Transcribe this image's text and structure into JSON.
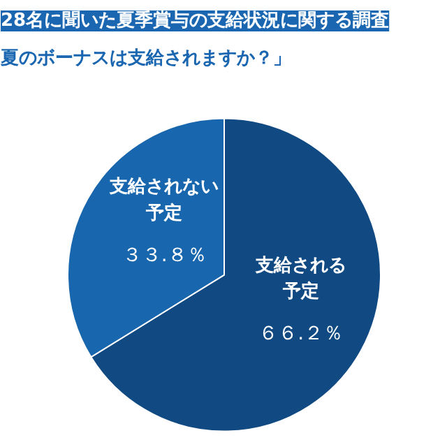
{
  "chart_data": {
    "type": "pie",
    "title": "28名に聞いた夏季賞与の支給状況に関する調査",
    "subtitle": "夏のボーナスは支給されますか？」",
    "categories": [
      "支給される予定",
      "支給されない予定"
    ],
    "values": [
      66.2,
      33.8
    ],
    "colors": [
      "#114a82",
      "#1866ad"
    ],
    "value_labels": [
      "６６.２％",
      "３３.８％"
    ]
  }
}
